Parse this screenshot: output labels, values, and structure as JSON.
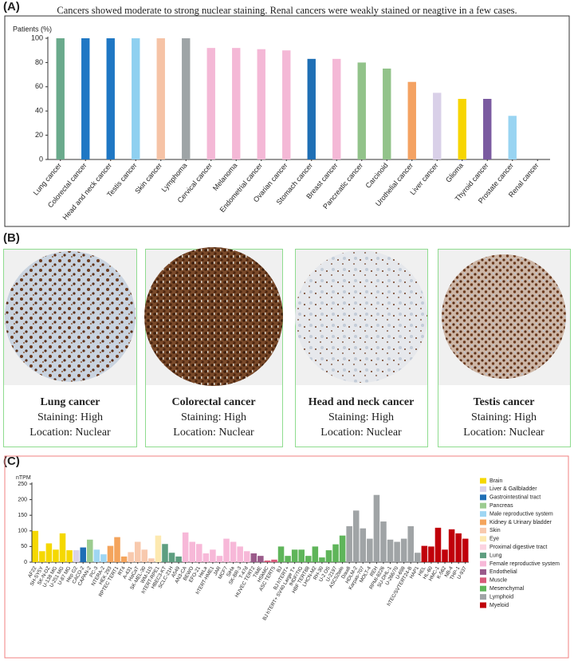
{
  "panel_labels": [
    "(A)",
    "(B)",
    "(C)"
  ],
  "chart_data": [
    {
      "type": "bar",
      "title": "Cancers showed moderate to strong nuclear staining. Renal cancers were weakly stained or  neagtive in a few cases.",
      "y_label": "Patients (%)",
      "categories": [
        "Lung cancer",
        "Colorectal cancer",
        "Head and neck cancer",
        "Testis cancer",
        "Skin cancer",
        "Lymphoma",
        "Cervical cancer",
        "Melanoma",
        "Endometrial cancer",
        "Ovarian cancer",
        "Stomach cancer",
        "Breast cancer",
        "Pancreatic cancer",
        "Carcinoid",
        "Urothelial cancer",
        "Liver cancer",
        "Glioma",
        "Thyroid cancer",
        "Prostate cancer",
        "Renal cancer"
      ],
      "values": [
        100,
        100,
        100,
        100,
        100,
        100,
        92,
        92,
        91,
        90,
        83,
        83,
        80,
        75,
        64,
        55,
        50,
        50,
        36,
        0
      ],
      "colors": [
        "#6aaa8c",
        "#1f77c4",
        "#1f77c4",
        "#8fd0f0",
        "#f6c3a6",
        "#9ea4a6",
        "#f4b8d6",
        "#f4b8d6",
        "#f4b8d6",
        "#f4b8d6",
        "#1f6fb5",
        "#f4b8d6",
        "#92c38a",
        "#92c38a",
        "#f4a262",
        "#d9d0e8",
        "#f7d500",
        "#7a5aa0",
        "#99d4f2",
        "#cccccc"
      ],
      "ylim": [
        0,
        100
      ],
      "yticks": [
        0,
        20,
        40,
        60,
        80,
        100
      ]
    },
    {
      "type": "bar",
      "y_label": "nTPM",
      "categories": [
        "AF22",
        "SH-SY5Y",
        "SK-N-DZ",
        "U-138 MG",
        "U-251 MG",
        "U-87 MG",
        "Hep G2",
        "CACO-2",
        "CAPAN-2",
        "PC-3",
        "NTERA-2",
        "HEK 293",
        "RPTEC TERT1",
        "RT4",
        "A-431",
        "HaCaT",
        "SK-MEL-30",
        "WM-115",
        "hTERT-RPE1",
        "HBEC3-KT",
        "SCLC-21H",
        "A549",
        "AN3-CA",
        "BEWO",
        "EFO-21",
        "HeLa",
        "hTERT-HME1",
        "JAR",
        "MCF7",
        "SiHa",
        "SK-BR-3",
        "T-47d",
        "HUVEC TERT2",
        "TIME",
        "HSkMC",
        "ASC TERT5",
        "BJ",
        "BJ hTERT+",
        "BJ hTERT+ SV40 Large T+",
        "fHDF/TIG",
        "HBF TERT88",
        "LHCN-M2",
        "RH-30",
        "U-2 OS",
        "U-2197",
        "ASC52telo",
        "Daudi",
        "HDLM-2",
        "Karpas-707",
        "MOLT-4",
        "REH",
        "RPMI-8226",
        "SU-DHL-1",
        "U-266/70",
        "U-698",
        "hTEC/SVTERT24-B",
        "HAP1",
        "HEL",
        "HL-60",
        "HMC-1",
        "K-562",
        "NB-4",
        "THP-1",
        "U-937"
      ],
      "values": [
        100,
        35,
        60,
        40,
        92,
        38,
        38,
        47,
        72,
        40,
        25,
        52,
        80,
        18,
        32,
        65,
        40,
        12,
        85,
        58,
        30,
        18,
        95,
        65,
        58,
        28,
        40,
        20,
        75,
        65,
        50,
        35,
        28,
        20,
        5,
        8,
        50,
        20,
        40,
        40,
        20,
        50,
        15,
        38,
        57,
        85,
        115,
        165,
        108,
        75,
        215,
        130,
        72,
        65,
        75,
        115,
        30,
        52,
        50,
        110,
        40,
        105,
        92,
        75
      ],
      "colors": [
        "#f5d800",
        "#f5d800",
        "#f5d800",
        "#f5d800",
        "#f5d800",
        "#f5d800",
        "#d9d2e9",
        "#1f6eb5",
        "#9ccc90",
        "#9fd6f3",
        "#9fd6f3",
        "#f4a45c",
        "#f4a45c",
        "#f4a45c",
        "#f8c9ad",
        "#f8c9ad",
        "#f8c9ad",
        "#f8c9ad",
        "#fde9b0",
        "#5e9e80",
        "#5e9e80",
        "#5e9e80",
        "#f7b8d8",
        "#f7b8d8",
        "#f7b8d8",
        "#f7b8d8",
        "#f7b8d8",
        "#f7b8d8",
        "#f7b8d8",
        "#f7b8d8",
        "#f7b8d8",
        "#f7b8d8",
        "#9a5a8a",
        "#9a5a8a",
        "#d85a7a",
        "#d85a7a",
        "#5fb55a",
        "#5fb55a",
        "#5fb55a",
        "#5fb55a",
        "#5fb55a",
        "#5fb55a",
        "#5fb55a",
        "#5fb55a",
        "#5fb55a",
        "#5fb55a",
        "#a0a4a6",
        "#a0a4a6",
        "#a0a4a6",
        "#a0a4a6",
        "#a0a4a6",
        "#a0a4a6",
        "#a0a4a6",
        "#a0a4a6",
        "#a0a4a6",
        "#a0a4a6",
        "#a0a4a6",
        "#c0000a",
        "#c0000a",
        "#c0000a",
        "#c0000a",
        "#c0000a",
        "#c0000a",
        "#c0000a"
      ],
      "ylim": [
        0,
        250
      ],
      "yticks": [
        0,
        50,
        100,
        150,
        200,
        250
      ],
      "legend": [
        {
          "name": "Brain",
          "color": "#f5d800"
        },
        {
          "name": "Liver & Gallbladder",
          "color": "#d9d2e9"
        },
        {
          "name": "Gastrointestinal tract",
          "color": "#1f6eb5"
        },
        {
          "name": "Pancreas",
          "color": "#9ccc90"
        },
        {
          "name": "Male reproductive system",
          "color": "#9fd6f3"
        },
        {
          "name": "Kidney & Urinary bladder",
          "color": "#f4a45c"
        },
        {
          "name": "Skin",
          "color": "#f8c9ad"
        },
        {
          "name": "Eye",
          "color": "#fde9b0"
        },
        {
          "name": "Proximal digestive tract",
          "color": "#fbd3e0"
        },
        {
          "name": "Lung",
          "color": "#5e9e80"
        },
        {
          "name": "Female reproductive system",
          "color": "#f7b8d8"
        },
        {
          "name": "Endothelial",
          "color": "#9a5a8a"
        },
        {
          "name": "Muscle",
          "color": "#d85a7a"
        },
        {
          "name": "Mesenchymal",
          "color": "#5fb55a"
        },
        {
          "name": "Lymphoid",
          "color": "#a0a4a6"
        },
        {
          "name": "Myeloid",
          "color": "#c0000a"
        }
      ]
    }
  ],
  "cases": [
    {
      "name": "Lung cancer",
      "staining": "Staining: High",
      "location": "Location: Nuclear"
    },
    {
      "name": "Colorectal cancer",
      "staining": "Staining: High",
      "location": "Location: Nuclear"
    },
    {
      "name": "Head and neck cancer",
      "staining": "Staining: High",
      "location": "Location: Nuclear"
    },
    {
      "name": "Testis cancer",
      "staining": "Staining: High",
      "location": "Location: Nuclear"
    }
  ]
}
